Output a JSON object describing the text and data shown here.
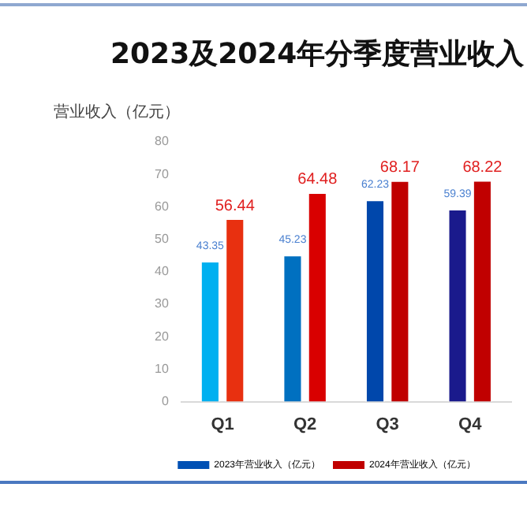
{
  "chart_data": {
    "type": "bar",
    "title": "2023及2024年分季度营业收入",
    "ylabel": "营业收入（亿元）",
    "categories": [
      "Q1",
      "Q2",
      "Q3",
      "Q4"
    ],
    "series": [
      {
        "name": "2023年营业收入（亿元）",
        "color": "#0050b4",
        "colors": [
          "#00b0f0",
          "#0070c0",
          "#0047ab",
          "#1a1a8c"
        ],
        "values": [
          43.35,
          45.23,
          62.23,
          59.39
        ]
      },
      {
        "name": "2024年营业收入（亿元）",
        "color": "#c00000",
        "colors": [
          "#e83010",
          "#d90000",
          "#c00000",
          "#c00000"
        ],
        "values": [
          56.44,
          64.48,
          68.17,
          68.22
        ]
      }
    ],
    "ylim": [
      0,
      80
    ],
    "yticks": [
      0,
      10,
      20,
      30,
      40,
      50,
      60,
      70,
      80
    ],
    "grid": false,
    "legend": "bottom",
    "data_labels": true
  }
}
